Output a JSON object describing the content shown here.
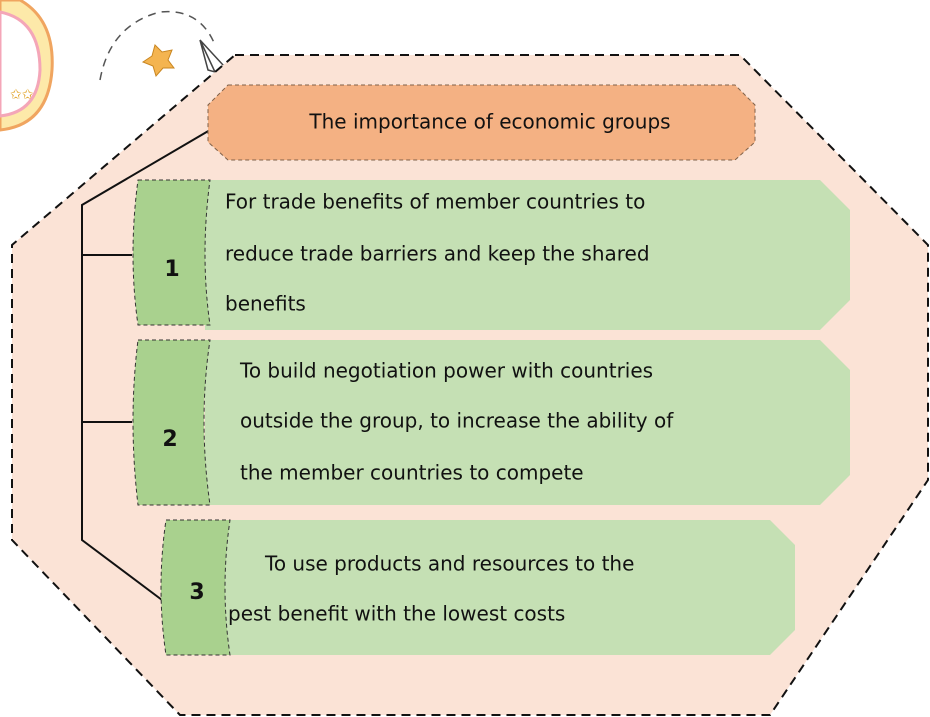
{
  "title": "The importance of economic groups",
  "items": [
    {
      "number": "1",
      "lines": [
        "For trade benefits of member countries to",
        "reduce trade barriers and keep the shared",
        "benefits"
      ]
    },
    {
      "number": "2",
      "lines": [
        "To build negotiation power with countries",
        "outside the group, to increase the ability of",
        "the member countries to compete"
      ]
    },
    {
      "number": "3",
      "lines": [
        "To use products and resources to the",
        "pest benefit with the lowest costs"
      ]
    }
  ]
}
